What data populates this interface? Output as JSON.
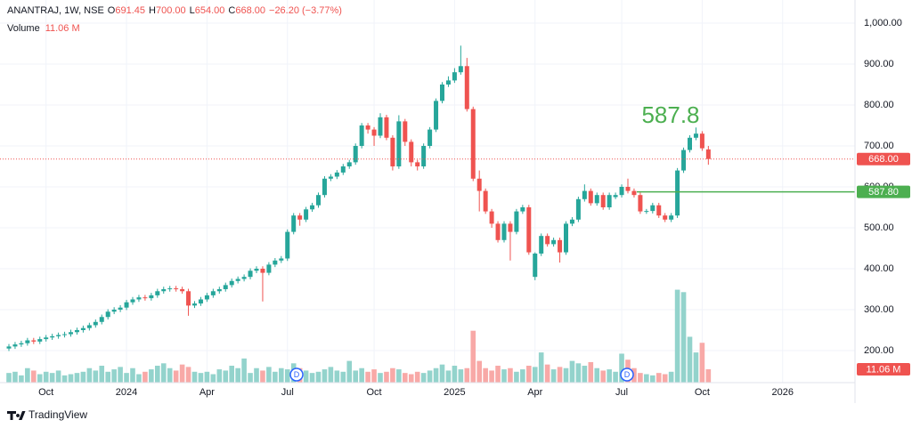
{
  "chart_data": {
    "type": "candlestick",
    "header": {
      "symbol": "ANANTRAJ, 1W, NSE",
      "o": "O",
      "open": "691.45",
      "h": "H",
      "high": "700.00",
      "l": "L",
      "low": "654.00",
      "c": "C",
      "close": "668.00",
      "change": "−26.20 (−3.77%)",
      "volume_title": "Volume",
      "volume_value": "11.06 M"
    },
    "categories": [
      null,
      null,
      null,
      null,
      null,
      null,
      "Oct",
      null,
      null,
      null,
      null,
      null,
      null,
      null,
      null,
      null,
      null,
      null,
      null,
      "2024",
      null,
      null,
      null,
      null,
      null,
      null,
      null,
      null,
      null,
      null,
      null,
      null,
      "Apr",
      null,
      null,
      null,
      null,
      null,
      null,
      null,
      null,
      null,
      null,
      null,
      null,
      "Jul",
      null,
      null,
      null,
      null,
      null,
      null,
      null,
      null,
      null,
      null,
      null,
      null,
      null,
      "Oct",
      null,
      null,
      null,
      null,
      null,
      null,
      null,
      null,
      null,
      null,
      null,
      null,
      "2025",
      null,
      null,
      null,
      null,
      null,
      null,
      null,
      null,
      null,
      null,
      null,
      null,
      "Apr",
      null,
      null,
      null,
      null,
      null,
      null,
      null,
      null,
      null,
      null,
      null,
      null,
      null,
      "Jul",
      null,
      null,
      null,
      null,
      null,
      null,
      null,
      null,
      null,
      null,
      null,
      null,
      "Oct",
      null,
      null,
      null,
      null,
      null,
      null,
      null,
      null,
      null,
      null,
      null,
      null,
      "2026"
    ],
    "ohlc": [
      [
        205,
        216,
        199,
        210
      ],
      [
        210,
        221,
        204,
        215
      ],
      [
        215,
        224,
        209,
        218
      ],
      [
        218,
        231,
        212,
        225
      ],
      [
        225,
        231,
        216,
        222
      ],
      [
        222,
        234,
        216,
        228
      ],
      [
        228,
        238,
        222,
        232
      ],
      [
        232,
        241,
        226,
        235
      ],
      [
        235,
        244,
        229,
        238
      ],
      [
        238,
        246,
        232,
        240
      ],
      [
        240,
        251,
        234,
        245
      ],
      [
        245,
        256,
        239,
        250
      ],
      [
        250,
        261,
        244,
        255
      ],
      [
        255,
        268,
        249,
        262
      ],
      [
        262,
        276,
        256,
        270
      ],
      [
        270,
        288,
        264,
        282
      ],
      [
        282,
        301,
        276,
        295
      ],
      [
        295,
        306,
        289,
        300
      ],
      [
        300,
        311,
        294,
        305
      ],
      [
        305,
        324,
        299,
        318
      ],
      [
        318,
        331,
        312,
        325
      ],
      [
        325,
        336,
        319,
        330
      ],
      [
        330,
        336,
        322,
        328
      ],
      [
        328,
        341,
        322,
        335
      ],
      [
        335,
        351,
        329,
        345
      ],
      [
        345,
        356,
        339,
        350
      ],
      [
        350,
        358,
        344,
        352
      ],
      [
        352,
        358,
        344,
        350
      ],
      [
        350,
        356,
        339,
        345
      ],
      [
        345,
        351,
        285,
        310
      ],
      [
        310,
        321,
        304,
        315
      ],
      [
        315,
        331,
        309,
        325
      ],
      [
        325,
        341,
        319,
        335
      ],
      [
        335,
        351,
        329,
        345
      ],
      [
        345,
        356,
        339,
        350
      ],
      [
        350,
        366,
        344,
        360
      ],
      [
        360,
        376,
        354,
        370
      ],
      [
        370,
        381,
        364,
        375
      ],
      [
        375,
        386,
        369,
        380
      ],
      [
        380,
        401,
        374,
        395
      ],
      [
        395,
        406,
        389,
        400
      ],
      [
        400,
        406,
        320,
        390
      ],
      [
        390,
        416,
        384,
        410
      ],
      [
        410,
        426,
        404,
        420
      ],
      [
        420,
        431,
        414,
        425
      ],
      [
        425,
        496,
        419,
        490
      ],
      [
        490,
        536,
        484,
        530
      ],
      [
        530,
        536,
        505,
        520
      ],
      [
        520,
        551,
        514,
        545
      ],
      [
        545,
        561,
        539,
        555
      ],
      [
        555,
        586,
        549,
        580
      ],
      [
        580,
        626,
        574,
        620
      ],
      [
        620,
        631,
        614,
        625
      ],
      [
        625,
        641,
        619,
        635
      ],
      [
        635,
        656,
        629,
        650
      ],
      [
        650,
        666,
        644,
        660
      ],
      [
        660,
        706,
        654,
        700
      ],
      [
        700,
        756,
        694,
        750
      ],
      [
        750,
        756,
        730,
        740
      ],
      [
        740,
        746,
        700,
        725
      ],
      [
        725,
        780,
        719,
        770
      ],
      [
        770,
        776,
        714,
        720
      ],
      [
        720,
        726,
        640,
        650
      ],
      [
        650,
        775,
        644,
        760
      ],
      [
        760,
        766,
        700,
        710
      ],
      [
        710,
        716,
        650,
        660
      ],
      [
        660,
        666,
        640,
        650
      ],
      [
        650,
        706,
        644,
        700
      ],
      [
        700,
        746,
        694,
        740
      ],
      [
        740,
        816,
        734,
        810
      ],
      [
        810,
        856,
        804,
        850
      ],
      [
        850,
        870,
        844,
        860
      ],
      [
        860,
        890,
        854,
        880
      ],
      [
        880,
        945,
        874,
        895
      ],
      [
        895,
        915,
        784,
        790
      ],
      [
        790,
        796,
        614,
        620
      ],
      [
        620,
        640,
        540,
        590
      ],
      [
        590,
        596,
        534,
        540
      ],
      [
        540,
        546,
        500,
        510
      ],
      [
        510,
        516,
        464,
        470
      ],
      [
        470,
        516,
        464,
        510
      ],
      [
        510,
        516,
        420,
        490
      ],
      [
        490,
        546,
        484,
        540
      ],
      [
        540,
        556,
        534,
        550
      ],
      [
        550,
        556,
        434,
        440
      ],
      [
        380,
        440,
        372,
        437
      ],
      [
        437,
        486,
        431,
        480
      ],
      [
        480,
        486,
        454,
        460
      ],
      [
        460,
        476,
        454,
        470
      ],
      [
        470,
        476,
        415,
        440
      ],
      [
        440,
        516,
        434,
        510
      ],
      [
        510,
        526,
        504,
        520
      ],
      [
        520,
        576,
        514,
        570
      ],
      [
        570,
        606,
        564,
        590
      ],
      [
        590,
        596,
        554,
        560
      ],
      [
        560,
        586,
        554,
        580
      ],
      [
        580,
        586,
        544,
        550
      ],
      [
        550,
        586,
        544,
        580
      ],
      [
        575,
        586,
        570,
        580
      ],
      [
        580,
        606,
        574,
        600
      ],
      [
        600,
        620,
        584,
        590
      ],
      [
        590,
        596,
        574,
        580
      ],
      [
        580,
        586,
        534,
        540
      ],
      [
        540,
        546,
        534,
        541
      ],
      [
        541,
        561,
        535,
        555
      ],
      [
        555,
        561,
        524,
        530
      ],
      [
        530,
        536,
        514,
        520
      ],
      [
        520,
        536,
        514,
        530
      ],
      [
        530,
        646,
        524,
        640
      ],
      [
        640,
        696,
        634,
        690
      ],
      [
        690,
        726,
        684,
        720
      ],
      [
        720,
        745,
        714,
        730
      ],
      [
        730,
        736,
        688,
        694.2
      ],
      [
        691.45,
        700,
        654,
        668
      ],
      null,
      null,
      null,
      null,
      null,
      null,
      null,
      null,
      null,
      null,
      null,
      null
    ],
    "volume": [
      8,
      9,
      6,
      12,
      10,
      7,
      9,
      8,
      10,
      6,
      7,
      8,
      9,
      12,
      10,
      14,
      9,
      11,
      13,
      8,
      12,
      7,
      9,
      11,
      14,
      16,
      12,
      10,
      15,
      13,
      9,
      8,
      9,
      7,
      11,
      10,
      14,
      12,
      20,
      8,
      12,
      10,
      13,
      9,
      12,
      11,
      16,
      12,
      10,
      8,
      9,
      11,
      13,
      10,
      9,
      18,
      10,
      12,
      9,
      11,
      8,
      9,
      12,
      11,
      8,
      7,
      9,
      8,
      10,
      12,
      15,
      10,
      14,
      11,
      12,
      43,
      18,
      12,
      10,
      14,
      11,
      12,
      9,
      11,
      14,
      13,
      25,
      15,
      11,
      13,
      12,
      18,
      16,
      14,
      17,
      12,
      10,
      11,
      9,
      24,
      19,
      12,
      8,
      7,
      6,
      8,
      7,
      9,
      77,
      75,
      38,
      25,
      33,
      11.06,
      null,
      null,
      null,
      null,
      null,
      null,
      null,
      null,
      null,
      null,
      null,
      null
    ],
    "ylim": [
      121.7,
      1056.5
    ],
    "yticks": [
      {
        "value": 1000,
        "label": "1,000.00"
      },
      {
        "value": 900,
        "label": "900.00"
      },
      {
        "value": 800,
        "label": "800.00"
      },
      {
        "value": 700,
        "label": "700.00"
      },
      {
        "value": 600,
        "label": "600.00"
      },
      {
        "value": 500,
        "label": "500.00"
      },
      {
        "value": 400,
        "label": "400.00"
      },
      {
        "value": 300,
        "label": "300.00"
      },
      {
        "value": 200,
        "label": "200.00"
      }
    ],
    "last_price": {
      "value": 668,
      "label": "668.00"
    },
    "level": {
      "value": 587.8,
      "label": "587.80"
    },
    "events": [
      "D",
      "D"
    ],
    "up_color": "#26a69a",
    "down_color": "#ef5350",
    "up_volume_color": "#93d3cc",
    "down_volume_color": "#f8a9a7",
    "level_color": "#4caf50",
    "grid": true,
    "brand": "TradingView"
  }
}
